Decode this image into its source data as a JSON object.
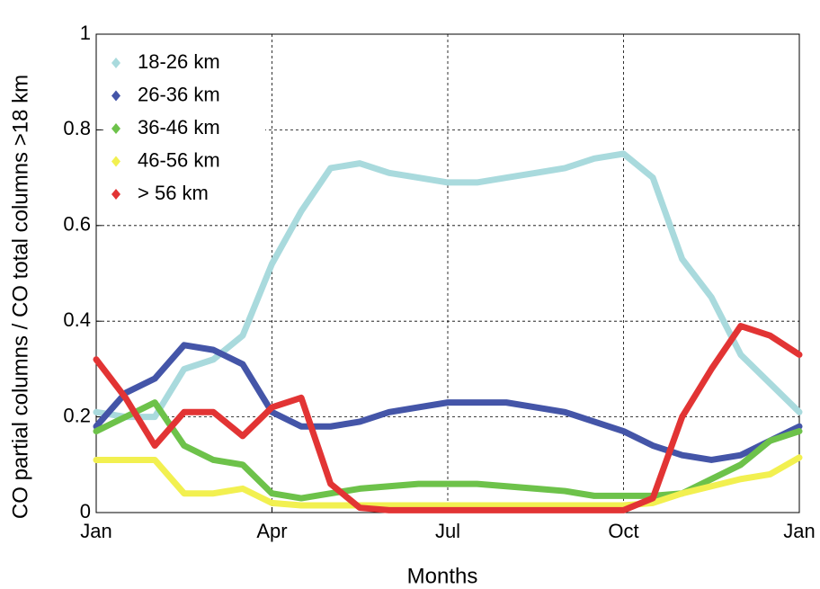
{
  "chart_data": {
    "type": "line",
    "xlabel": "Months",
    "ylabel": "CO partial columns / CO total columns >18 km",
    "x": [
      0,
      0.5,
      1,
      1.5,
      2,
      2.5,
      3,
      3.5,
      4,
      4.5,
      5,
      5.5,
      6,
      6.5,
      7,
      7.5,
      8,
      8.5,
      9,
      9.5,
      10,
      10.5,
      11,
      11.5,
      12
    ],
    "xlim": [
      0,
      12
    ],
    "xticks": [
      {
        "value": 0,
        "label": "Jan"
      },
      {
        "value": 3,
        "label": "Apr"
      },
      {
        "value": 6,
        "label": "Jul"
      },
      {
        "value": 9,
        "label": "Oct"
      },
      {
        "value": 12,
        "label": "Jan"
      }
    ],
    "ylim": [
      0,
      1
    ],
    "yticks": [
      0,
      0.2,
      0.4,
      0.6,
      0.8,
      1
    ],
    "grid": true,
    "legend": "upper-left",
    "series": [
      {
        "name": "18-26 km",
        "color": "#a9dadd",
        "values": [
          0.21,
          0.2,
          0.2,
          0.3,
          0.32,
          0.37,
          0.52,
          0.63,
          0.72,
          0.73,
          0.71,
          0.7,
          0.69,
          0.69,
          0.7,
          0.71,
          0.72,
          0.74,
          0.75,
          0.7,
          0.53,
          0.45,
          0.33,
          0.27,
          0.21
        ]
      },
      {
        "name": "26-36 km",
        "color": "#4455a8",
        "values": [
          0.18,
          0.25,
          0.28,
          0.35,
          0.34,
          0.31,
          0.21,
          0.18,
          0.18,
          0.19,
          0.21,
          0.22,
          0.23,
          0.23,
          0.23,
          0.22,
          0.21,
          0.19,
          0.17,
          0.14,
          0.12,
          0.11,
          0.12,
          0.15,
          0.18
        ]
      },
      {
        "name": "36-46 km",
        "color": "#6dc24a",
        "values": [
          0.17,
          0.2,
          0.23,
          0.14,
          0.11,
          0.1,
          0.04,
          0.03,
          0.04,
          0.05,
          0.055,
          0.06,
          0.06,
          0.06,
          0.055,
          0.05,
          0.045,
          0.035,
          0.035,
          0.035,
          0.04,
          0.07,
          0.1,
          0.15,
          0.17
        ]
      },
      {
        "name": "46-56 km",
        "color": "#f2f050",
        "values": [
          0.11,
          0.11,
          0.11,
          0.04,
          0.04,
          0.05,
          0.02,
          0.015,
          0.015,
          0.015,
          0.015,
          0.015,
          0.015,
          0.015,
          0.015,
          0.015,
          0.015,
          0.015,
          0.015,
          0.02,
          0.04,
          0.055,
          0.07,
          0.08,
          0.115
        ]
      },
      {
        "name": "> 56 km",
        "color": "#e23434",
        "values": [
          0.32,
          0.24,
          0.14,
          0.21,
          0.21,
          0.16,
          0.22,
          0.24,
          0.06,
          0.01,
          0.005,
          0.005,
          0.005,
          0.005,
          0.005,
          0.005,
          0.005,
          0.005,
          0.005,
          0.03,
          0.2,
          0.3,
          0.39,
          0.37,
          0.33
        ]
      }
    ]
  }
}
